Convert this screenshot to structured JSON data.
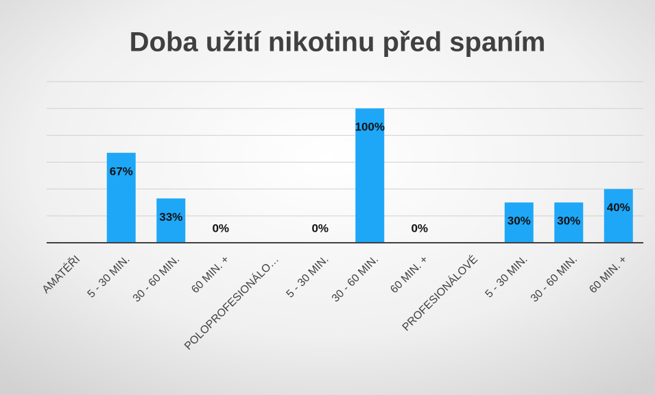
{
  "chart_data": {
    "type": "bar",
    "title": "Doba užití nikotinu před spaním",
    "categories": [
      "AMATÉŘI",
      "5 - 30 MIN.",
      "30 - 60 MIN.",
      "60 MIN. +",
      "POLOPROFESIONÁLO…",
      "5 - 30 MIN.",
      "30 - 60 MIN.",
      "60 MIN. +",
      "PROFESIONÁLOVÉ",
      "5 - 30 MIN.",
      "30 - 60 MIN.",
      "60 MIN. +"
    ],
    "values": [
      null,
      67,
      33,
      0,
      null,
      0,
      100,
      0,
      null,
      30,
      30,
      40
    ],
    "value_labels": [
      null,
      "67%",
      "33%",
      "0%",
      null,
      "0%",
      "100%",
      "0%",
      null,
      "30%",
      "30%",
      "40%"
    ],
    "color": "#1ea7f7",
    "ylim": [
      0,
      120
    ],
    "yticks": [
      0,
      20,
      40,
      60,
      80,
      100,
      120
    ],
    "grid": true
  }
}
